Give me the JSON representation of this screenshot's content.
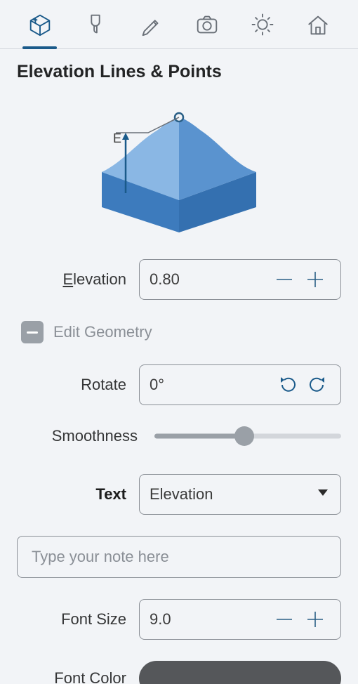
{
  "panel": {
    "title": "Elevation Lines & Points"
  },
  "tabs": {
    "active_index": 0,
    "items": [
      "terrain",
      "brush",
      "draw",
      "camera",
      "light",
      "home"
    ]
  },
  "fields": {
    "elevation": {
      "label_pre": "",
      "label_ul": "E",
      "label_post": "levation",
      "value": "0.80"
    },
    "edit_geometry": {
      "label": "Edit Geometry",
      "state": "indeterminate"
    },
    "rotate": {
      "label": "Rotate",
      "value": "0°"
    },
    "smoothness": {
      "label": "Smoothness",
      "percent": 48
    },
    "text": {
      "label": "Text",
      "selected": "Elevation"
    },
    "note": {
      "placeholder": "Type your note here",
      "value": ""
    },
    "font_size": {
      "label": "Font Size",
      "value": "9.0"
    },
    "font_color": {
      "label": "Font Color",
      "hex": "#55575a"
    }
  },
  "colors": {
    "accent": "#1a5a8a",
    "border": "#8a8f96",
    "bg": "#f2f4f7",
    "muted": "#9aa0a7",
    "terrain_top_light": "#8ab7e4",
    "terrain_top_dark": "#5a93cf",
    "terrain_side_left": "#3d7bbd",
    "terrain_side_right": "#3470b0"
  }
}
